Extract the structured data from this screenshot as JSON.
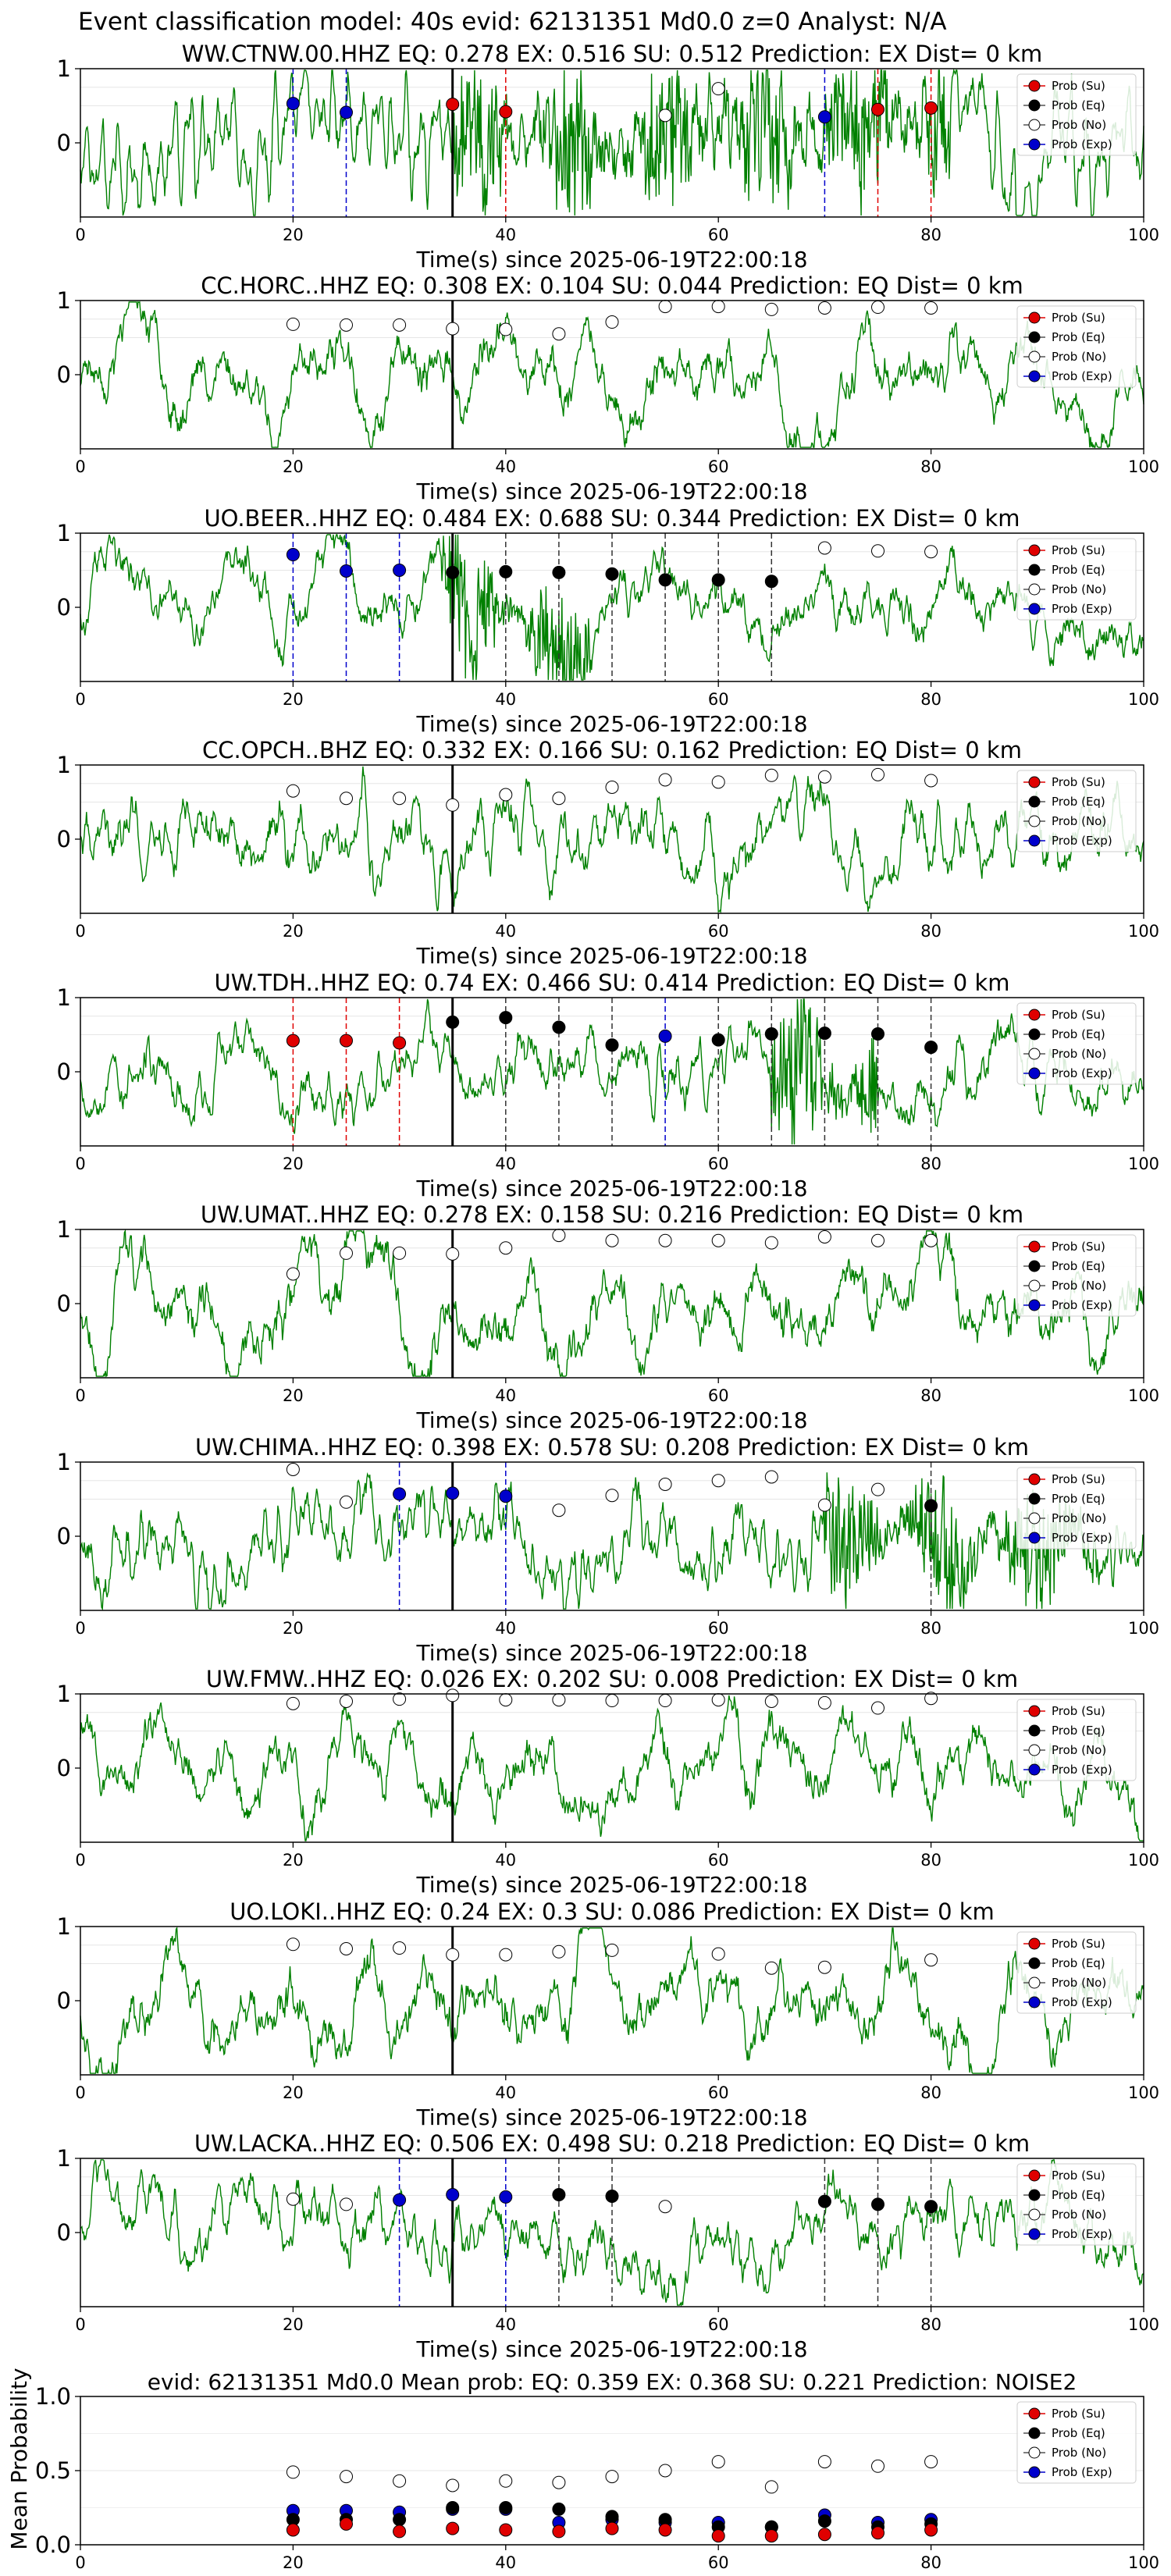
{
  "figure": {
    "suptitle": "Event classification model: 40s evid: 62131351 Md0.0 z=0 Analyst: N/A",
    "xlabel": "Time(s) since 2025-06-19T22:00:18",
    "mean_ylabel": "Mean Probability",
    "legend_labels": [
      "Prob (Su)",
      "Prob (Eq)",
      "Prob (No)",
      "Prob (Exp)"
    ],
    "colors": {
      "su": "#e00000",
      "eq": "#000000",
      "no": "#ffffff",
      "exp": "#0000cc",
      "waveform": "#008000"
    }
  },
  "chart_data": [
    {
      "type": "line",
      "title": "WW.CTNW.00.HHZ   EQ: 0.278  EX: 0.516  SU: 0.512   Prediction: EX    Dist= 0 km",
      "xlim": [
        0,
        100
      ],
      "ylim": [
        -1,
        1
      ],
      "xticks": [
        "0",
        "20",
        "40",
        "60",
        "80",
        "100"
      ],
      "yticks": [
        "0",
        "1"
      ],
      "pick_time": 35,
      "noise_amp": 0.85,
      "noise_freq": 2.2,
      "burst": [
        35,
        82,
        0.95
      ],
      "seed": 11,
      "points": [
        {
          "x": 20,
          "y": 0.53,
          "cls": "exp"
        },
        {
          "x": 25,
          "y": 0.41,
          "cls": "exp"
        },
        {
          "x": 35,
          "y": 0.52,
          "cls": "su"
        },
        {
          "x": 40,
          "y": 0.42,
          "cls": "su"
        },
        {
          "x": 55,
          "y": 0.37,
          "cls": "no"
        },
        {
          "x": 60,
          "y": 0.73,
          "cls": "no"
        },
        {
          "x": 70,
          "y": 0.35,
          "cls": "exp"
        },
        {
          "x": 75,
          "y": 0.45,
          "cls": "su"
        },
        {
          "x": 80,
          "y": 0.47,
          "cls": "su"
        }
      ]
    },
    {
      "type": "line",
      "title": "CC.HORC..HHZ   EQ: 0.308  EX: 0.104  SU: 0.044   Prediction: EQ    Dist= 0 km",
      "xlim": [
        0,
        100
      ],
      "ylim": [
        -1,
        1
      ],
      "xticks": [
        "0",
        "20",
        "40",
        "60",
        "80",
        "100"
      ],
      "yticks": [
        "0",
        "1"
      ],
      "pick_time": 35,
      "noise_amp": 0.55,
      "noise_freq": 0.35,
      "burst": null,
      "seed": 23,
      "points": [
        {
          "x": 20,
          "y": 0.68,
          "cls": "no"
        },
        {
          "x": 25,
          "y": 0.67,
          "cls": "no"
        },
        {
          "x": 30,
          "y": 0.67,
          "cls": "no"
        },
        {
          "x": 35,
          "y": 0.62,
          "cls": "no"
        },
        {
          "x": 40,
          "y": 0.61,
          "cls": "no"
        },
        {
          "x": 45,
          "y": 0.55,
          "cls": "no"
        },
        {
          "x": 50,
          "y": 0.71,
          "cls": "no"
        },
        {
          "x": 55,
          "y": 0.92,
          "cls": "no"
        },
        {
          "x": 60,
          "y": 0.92,
          "cls": "no"
        },
        {
          "x": 65,
          "y": 0.88,
          "cls": "no"
        },
        {
          "x": 70,
          "y": 0.9,
          "cls": "no"
        },
        {
          "x": 75,
          "y": 0.91,
          "cls": "no"
        },
        {
          "x": 80,
          "y": 0.9,
          "cls": "no"
        }
      ]
    },
    {
      "type": "line",
      "title": "UO.BEER..HHZ   EQ: 0.484  EX: 0.688  SU: 0.344   Prediction: EX    Dist= 0 km",
      "xlim": [
        0,
        100
      ],
      "ylim": [
        -1,
        1
      ],
      "xticks": [
        "0",
        "20",
        "40",
        "60",
        "80",
        "100"
      ],
      "yticks": [
        "0",
        "1"
      ],
      "pick_time": 35,
      "noise_amp": 0.28,
      "noise_freq": 0.45,
      "burst": [
        34,
        48,
        0.9
      ],
      "seed": 37,
      "points": [
        {
          "x": 20,
          "y": 0.71,
          "cls": "exp"
        },
        {
          "x": 25,
          "y": 0.49,
          "cls": "exp"
        },
        {
          "x": 30,
          "y": 0.5,
          "cls": "exp"
        },
        {
          "x": 35,
          "y": 0.47,
          "cls": "eq"
        },
        {
          "x": 40,
          "y": 0.48,
          "cls": "eq"
        },
        {
          "x": 45,
          "y": 0.47,
          "cls": "eq"
        },
        {
          "x": 50,
          "y": 0.45,
          "cls": "eq"
        },
        {
          "x": 55,
          "y": 0.37,
          "cls": "eq"
        },
        {
          "x": 60,
          "y": 0.37,
          "cls": "eq"
        },
        {
          "x": 65,
          "y": 0.35,
          "cls": "eq"
        },
        {
          "x": 70,
          "y": 0.8,
          "cls": "no"
        },
        {
          "x": 75,
          "y": 0.76,
          "cls": "no"
        },
        {
          "x": 80,
          "y": 0.75,
          "cls": "no"
        }
      ]
    },
    {
      "type": "line",
      "title": "CC.OPCH..BHZ   EQ: 0.332  EX: 0.166  SU: 0.162   Prediction: EQ    Dist= 0 km",
      "xlim": [
        0,
        100
      ],
      "ylim": [
        -1,
        1
      ],
      "xticks": [
        "0",
        "20",
        "40",
        "60",
        "80",
        "100"
      ],
      "yticks": [
        "0",
        "1"
      ],
      "pick_time": 35,
      "noise_amp": 0.55,
      "noise_freq": 1.1,
      "burst": null,
      "seed": 41,
      "points": [
        {
          "x": 20,
          "y": 0.65,
          "cls": "no"
        },
        {
          "x": 25,
          "y": 0.55,
          "cls": "no"
        },
        {
          "x": 30,
          "y": 0.55,
          "cls": "no"
        },
        {
          "x": 35,
          "y": 0.46,
          "cls": "no"
        },
        {
          "x": 40,
          "y": 0.6,
          "cls": "no"
        },
        {
          "x": 45,
          "y": 0.55,
          "cls": "no"
        },
        {
          "x": 50,
          "y": 0.7,
          "cls": "no"
        },
        {
          "x": 55,
          "y": 0.8,
          "cls": "no"
        },
        {
          "x": 60,
          "y": 0.77,
          "cls": "no"
        },
        {
          "x": 65,
          "y": 0.86,
          "cls": "no"
        },
        {
          "x": 70,
          "y": 0.84,
          "cls": "no"
        },
        {
          "x": 75,
          "y": 0.87,
          "cls": "no"
        },
        {
          "x": 80,
          "y": 0.79,
          "cls": "no"
        }
      ]
    },
    {
      "type": "line",
      "title": "UW.TDH..HHZ   EQ: 0.74  EX: 0.466  SU: 0.414   Prediction: EQ    Dist= 0 km",
      "xlim": [
        0,
        100
      ],
      "ylim": [
        -1,
        1
      ],
      "xticks": [
        "0",
        "20",
        "40",
        "60",
        "80",
        "100"
      ],
      "yticks": [
        "0",
        "1"
      ],
      "pick_time": 35,
      "noise_amp": 0.3,
      "noise_freq": 1.8,
      "burst": [
        65,
        75,
        1.0
      ],
      "seed": 53,
      "points": [
        {
          "x": 20,
          "y": 0.42,
          "cls": "su"
        },
        {
          "x": 25,
          "y": 0.42,
          "cls": "su"
        },
        {
          "x": 30,
          "y": 0.39,
          "cls": "su"
        },
        {
          "x": 35,
          "y": 0.67,
          "cls": "eq"
        },
        {
          "x": 40,
          "y": 0.73,
          "cls": "eq"
        },
        {
          "x": 45,
          "y": 0.6,
          "cls": "eq"
        },
        {
          "x": 50,
          "y": 0.36,
          "cls": "eq"
        },
        {
          "x": 55,
          "y": 0.48,
          "cls": "exp"
        },
        {
          "x": 60,
          "y": 0.43,
          "cls": "eq"
        },
        {
          "x": 65,
          "y": 0.51,
          "cls": "eq"
        },
        {
          "x": 70,
          "y": 0.52,
          "cls": "eq"
        },
        {
          "x": 75,
          "y": 0.51,
          "cls": "eq"
        },
        {
          "x": 80,
          "y": 0.33,
          "cls": "eq"
        }
      ]
    },
    {
      "type": "line",
      "title": "UW.UMAT..HHZ   EQ: 0.278  EX: 0.158  SU: 0.216   Prediction: EQ    Dist= 0 km",
      "xlim": [
        0,
        100
      ],
      "ylim": [
        -1,
        1
      ],
      "xticks": [
        "0",
        "20",
        "40",
        "60",
        "80",
        "100"
      ],
      "yticks": [
        "0",
        "1"
      ],
      "pick_time": 35,
      "noise_amp": 0.7,
      "noise_freq": 0.4,
      "burst": null,
      "seed": 67,
      "points": [
        {
          "x": 20,
          "y": 0.4,
          "cls": "no"
        },
        {
          "x": 25,
          "y": 0.68,
          "cls": "no"
        },
        {
          "x": 30,
          "y": 0.68,
          "cls": "no"
        },
        {
          "x": 35,
          "y": 0.67,
          "cls": "no"
        },
        {
          "x": 40,
          "y": 0.75,
          "cls": "no"
        },
        {
          "x": 45,
          "y": 0.92,
          "cls": "no"
        },
        {
          "x": 50,
          "y": 0.85,
          "cls": "no"
        },
        {
          "x": 55,
          "y": 0.85,
          "cls": "no"
        },
        {
          "x": 60,
          "y": 0.85,
          "cls": "no"
        },
        {
          "x": 65,
          "y": 0.82,
          "cls": "no"
        },
        {
          "x": 70,
          "y": 0.9,
          "cls": "no"
        },
        {
          "x": 75,
          "y": 0.85,
          "cls": "no"
        },
        {
          "x": 80,
          "y": 0.85,
          "cls": "no"
        }
      ]
    },
    {
      "type": "line",
      "title": "UW.CHIMA..HHZ   EQ: 0.398  EX: 0.578  SU: 0.208   Prediction: EX    Dist= 0 km",
      "xlim": [
        0,
        100
      ],
      "ylim": [
        -1,
        1
      ],
      "xticks": [
        "0",
        "20",
        "40",
        "60",
        "80",
        "100"
      ],
      "yticks": [
        "0",
        "1"
      ],
      "pick_time": 35,
      "noise_amp": 0.4,
      "noise_freq": 2.5,
      "burst": [
        70,
        96,
        0.85
      ],
      "seed": 79,
      "points": [
        {
          "x": 20,
          "y": 0.9,
          "cls": "no"
        },
        {
          "x": 25,
          "y": 0.46,
          "cls": "no"
        },
        {
          "x": 30,
          "y": 0.57,
          "cls": "exp"
        },
        {
          "x": 35,
          "y": 0.58,
          "cls": "exp"
        },
        {
          "x": 40,
          "y": 0.54,
          "cls": "exp"
        },
        {
          "x": 45,
          "y": 0.35,
          "cls": "no"
        },
        {
          "x": 50,
          "y": 0.55,
          "cls": "no"
        },
        {
          "x": 55,
          "y": 0.7,
          "cls": "no"
        },
        {
          "x": 60,
          "y": 0.75,
          "cls": "no"
        },
        {
          "x": 65,
          "y": 0.8,
          "cls": "no"
        },
        {
          "x": 70,
          "y": 0.42,
          "cls": "no"
        },
        {
          "x": 75,
          "y": 0.63,
          "cls": "no"
        },
        {
          "x": 80,
          "y": 0.41,
          "cls": "eq"
        }
      ]
    },
    {
      "type": "line",
      "title": "UW.FMW..HHZ   EQ: 0.026  EX: 0.202  SU: 0.008   Prediction: EX    Dist= 0 km",
      "xlim": [
        0,
        100
      ],
      "ylim": [
        -1,
        1
      ],
      "xticks": [
        "0",
        "20",
        "40",
        "60",
        "80",
        "100"
      ],
      "yticks": [
        "0",
        "1"
      ],
      "pick_time": 35,
      "noise_amp": 0.6,
      "noise_freq": 0.5,
      "burst": null,
      "seed": 89,
      "points": [
        {
          "x": 20,
          "y": 0.87,
          "cls": "no"
        },
        {
          "x": 25,
          "y": 0.9,
          "cls": "no"
        },
        {
          "x": 30,
          "y": 0.93,
          "cls": "no"
        },
        {
          "x": 35,
          "y": 0.98,
          "cls": "no"
        },
        {
          "x": 40,
          "y": 0.92,
          "cls": "no"
        },
        {
          "x": 45,
          "y": 0.92,
          "cls": "no"
        },
        {
          "x": 50,
          "y": 0.91,
          "cls": "no"
        },
        {
          "x": 55,
          "y": 0.91,
          "cls": "no"
        },
        {
          "x": 60,
          "y": 0.92,
          "cls": "no"
        },
        {
          "x": 65,
          "y": 0.9,
          "cls": "no"
        },
        {
          "x": 70,
          "y": 0.88,
          "cls": "no"
        },
        {
          "x": 75,
          "y": 0.81,
          "cls": "no"
        },
        {
          "x": 80,
          "y": 0.94,
          "cls": "no"
        }
      ]
    },
    {
      "type": "line",
      "title": "UO.LOKI..HHZ   EQ: 0.24  EX: 0.3  SU: 0.086   Prediction: EX    Dist= 0 km",
      "xlim": [
        0,
        100
      ],
      "ylim": [
        -1,
        1
      ],
      "xticks": [
        "0",
        "20",
        "40",
        "60",
        "80",
        "100"
      ],
      "yticks": [
        "0",
        "1"
      ],
      "pick_time": 35,
      "noise_amp": 0.72,
      "noise_freq": 0.3,
      "burst": null,
      "seed": 97,
      "points": [
        {
          "x": 20,
          "y": 0.76,
          "cls": "no"
        },
        {
          "x": 25,
          "y": 0.7,
          "cls": "no"
        },
        {
          "x": 30,
          "y": 0.71,
          "cls": "no"
        },
        {
          "x": 35,
          "y": 0.62,
          "cls": "no"
        },
        {
          "x": 40,
          "y": 0.62,
          "cls": "no"
        },
        {
          "x": 45,
          "y": 0.66,
          "cls": "no"
        },
        {
          "x": 50,
          "y": 0.68,
          "cls": "no"
        },
        {
          "x": 60,
          "y": 0.63,
          "cls": "no"
        },
        {
          "x": 65,
          "y": 0.44,
          "cls": "no"
        },
        {
          "x": 70,
          "y": 0.45,
          "cls": "no"
        },
        {
          "x": 80,
          "y": 0.55,
          "cls": "no"
        }
      ]
    },
    {
      "type": "line",
      "title": "UW.LACKA..HHZ   EQ: 0.506  EX: 0.498  SU: 0.218   Prediction: EQ    Dist= 0 km",
      "xlim": [
        0,
        100
      ],
      "ylim": [
        -1,
        1
      ],
      "xticks": [
        "0",
        "20",
        "40",
        "60",
        "80",
        "100"
      ],
      "yticks": [
        "0",
        "1"
      ],
      "pick_time": 35,
      "noise_amp": 0.35,
      "noise_freq": 1.6,
      "burst": null,
      "seed": 103,
      "points": [
        {
          "x": 20,
          "y": 0.45,
          "cls": "no"
        },
        {
          "x": 25,
          "y": 0.38,
          "cls": "no"
        },
        {
          "x": 30,
          "y": 0.44,
          "cls": "exp"
        },
        {
          "x": 35,
          "y": 0.51,
          "cls": "exp"
        },
        {
          "x": 40,
          "y": 0.48,
          "cls": "exp"
        },
        {
          "x": 45,
          "y": 0.51,
          "cls": "eq"
        },
        {
          "x": 50,
          "y": 0.49,
          "cls": "eq"
        },
        {
          "x": 55,
          "y": 0.35,
          "cls": "no"
        },
        {
          "x": 70,
          "y": 0.42,
          "cls": "eq"
        },
        {
          "x": 75,
          "y": 0.38,
          "cls": "eq"
        },
        {
          "x": 80,
          "y": 0.35,
          "cls": "eq"
        }
      ]
    },
    {
      "type": "scatter",
      "title": "evid: 62131351  Md0.0   Mean prob:   EQ: 0.359  EX: 0.368  SU: 0.221   Prediction: NOISE2",
      "xlim": [
        0,
        100
      ],
      "ylim": [
        0,
        1
      ],
      "xticks": [
        "0",
        "20",
        "40",
        "60",
        "80",
        "100"
      ],
      "yticks": [
        {
          "v": 0,
          "label": "0.0"
        },
        {
          "v": 0.5,
          "label": "0.5"
        },
        {
          "v": 1,
          "label": "1.0"
        }
      ],
      "x": [
        20,
        25,
        30,
        35,
        40,
        45,
        50,
        55,
        60,
        65,
        70,
        75,
        80
      ],
      "series": [
        {
          "cls": "no",
          "values": [
            0.49,
            0.46,
            0.43,
            0.4,
            0.43,
            0.42,
            0.46,
            0.5,
            0.56,
            0.39,
            0.56,
            0.53,
            0.56
          ]
        },
        {
          "cls": "exp",
          "values": [
            0.23,
            0.23,
            0.22,
            0.24,
            0.24,
            0.15,
            0.17,
            0.15,
            0.15,
            0.12,
            0.2,
            0.15,
            0.17
          ]
        },
        {
          "cls": "eq",
          "values": [
            0.17,
            0.17,
            0.17,
            0.25,
            0.25,
            0.24,
            0.19,
            0.17,
            0.12,
            0.12,
            0.16,
            0.12,
            0.14
          ]
        },
        {
          "cls": "su",
          "values": [
            0.1,
            0.14,
            0.09,
            0.11,
            0.1,
            0.09,
            0.11,
            0.1,
            0.06,
            0.06,
            0.07,
            0.08,
            0.1
          ]
        }
      ]
    }
  ]
}
